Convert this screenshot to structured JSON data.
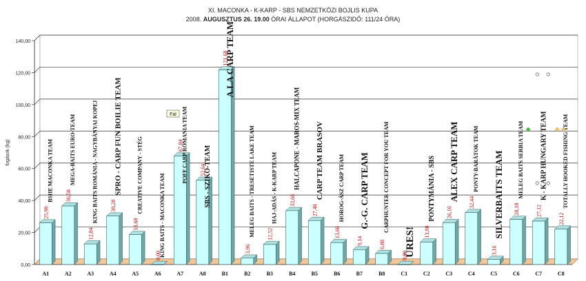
{
  "header": {
    "line1": "XI.  MACONKA - K-KARP - SBS NEMZETKÖZI BOJLIS KUPA",
    "line2_prefix": "2008. ",
    "line2_bold": "AUGUSZTUS 26. 19.00",
    "line2_suffix": " ÓRAI ÁLLAPOT (HORGÁSZIDŐ: 111/24 ÓRA)"
  },
  "tooltip": "Fal",
  "chart_data": {
    "type": "bar",
    "title": "XI.  MACONKA - K-KARP - SBS NEMZETKÖZI BOJLIS KUPA",
    "ylabel": "fogások (kg)",
    "ylim": [
      0,
      140
    ],
    "yticks": [
      "0,00",
      "20,00",
      "40,00",
      "60,00",
      "80,00",
      "100,00",
      "120,00",
      "140,00"
    ],
    "categories": [
      "A1",
      "A2",
      "A3",
      "A4",
      "A5",
      "A6",
      "A7",
      "A8",
      "B1",
      "B2",
      "B3",
      "B4",
      "B5",
      "B6",
      "B7",
      "B8",
      "C1",
      "C2",
      "C3",
      "C4",
      "C5",
      "C6",
      "C7",
      "C8"
    ],
    "values": [
      25.98,
      36.58,
      12.84,
      30.28,
      18.68,
      0.0,
      67.84,
      52.64,
      121.68,
      3.96,
      12.52,
      33.66,
      27.48,
      13.66,
      9.14,
      6.88,
      0.0,
      13.98,
      26.16,
      32.44,
      3.16,
      28.18,
      27.12,
      22.12
    ],
    "value_labels": [
      "25,98",
      "36,58",
      "12,84",
      "30,28",
      "18,68",
      "0,00",
      "67,84",
      "52,64",
      "121,68",
      "3,96",
      "12,52",
      "33,66",
      "27,48",
      "13,66",
      "9,14",
      "6,88",
      "0,00",
      "13,98",
      "26,16",
      "32,44",
      "3,16",
      "28,18",
      "27,12",
      "22,12"
    ],
    "team_names": [
      "BSHE MACONKA TEAM",
      "MEGA-BAITS EURO-TEAM",
      "KING BAITS ROMÁNIA - NAGYBÁNYAI KOPEJ",
      "SPRO - CARP FUN BOILIE TEAM",
      "CREATIVE COMPANY - STÉG",
      "KING BAITS - MACONKA TEAM",
      "POFF CARP ROMANIA TEAM",
      "SBS - SZIKO-TEAM",
      "A.LA CARP TEAM",
      "MELEG BAITS - TRESETISTE LAKE TEAM",
      "HAJ-ADÁS - K-KARP TEAM",
      "HALCAPONE - MAROS-MIX TEAM",
      "CARP TEAM BRASOV",
      "HOROG-ÁSZ CARP TEAM",
      "G.-G. CARP TEAM",
      "CARPHUNTER CONCEPT FOR YOU TEAM",
      "ÜRES!",
      "PONTYMÁNIA - SBS",
      "ALEX CARP TEAM",
      "PONTY-BARÁTOK TEAM",
      "SILVERBAITS TEAM",
      "MELEG BAITS SERBIA TEAM",
      "K - KARP HUNGARY TEAM",
      "TOTALLY HOOKED FISHING TEAM"
    ],
    "grid": true,
    "legend": "none",
    "colors": {
      "bar_front": "#ccffff",
      "bar_side": "#6fa7a7",
      "bar_top": "#b0e0e0",
      "floor": "#f2c89a",
      "value_label": "#cc0000"
    }
  }
}
